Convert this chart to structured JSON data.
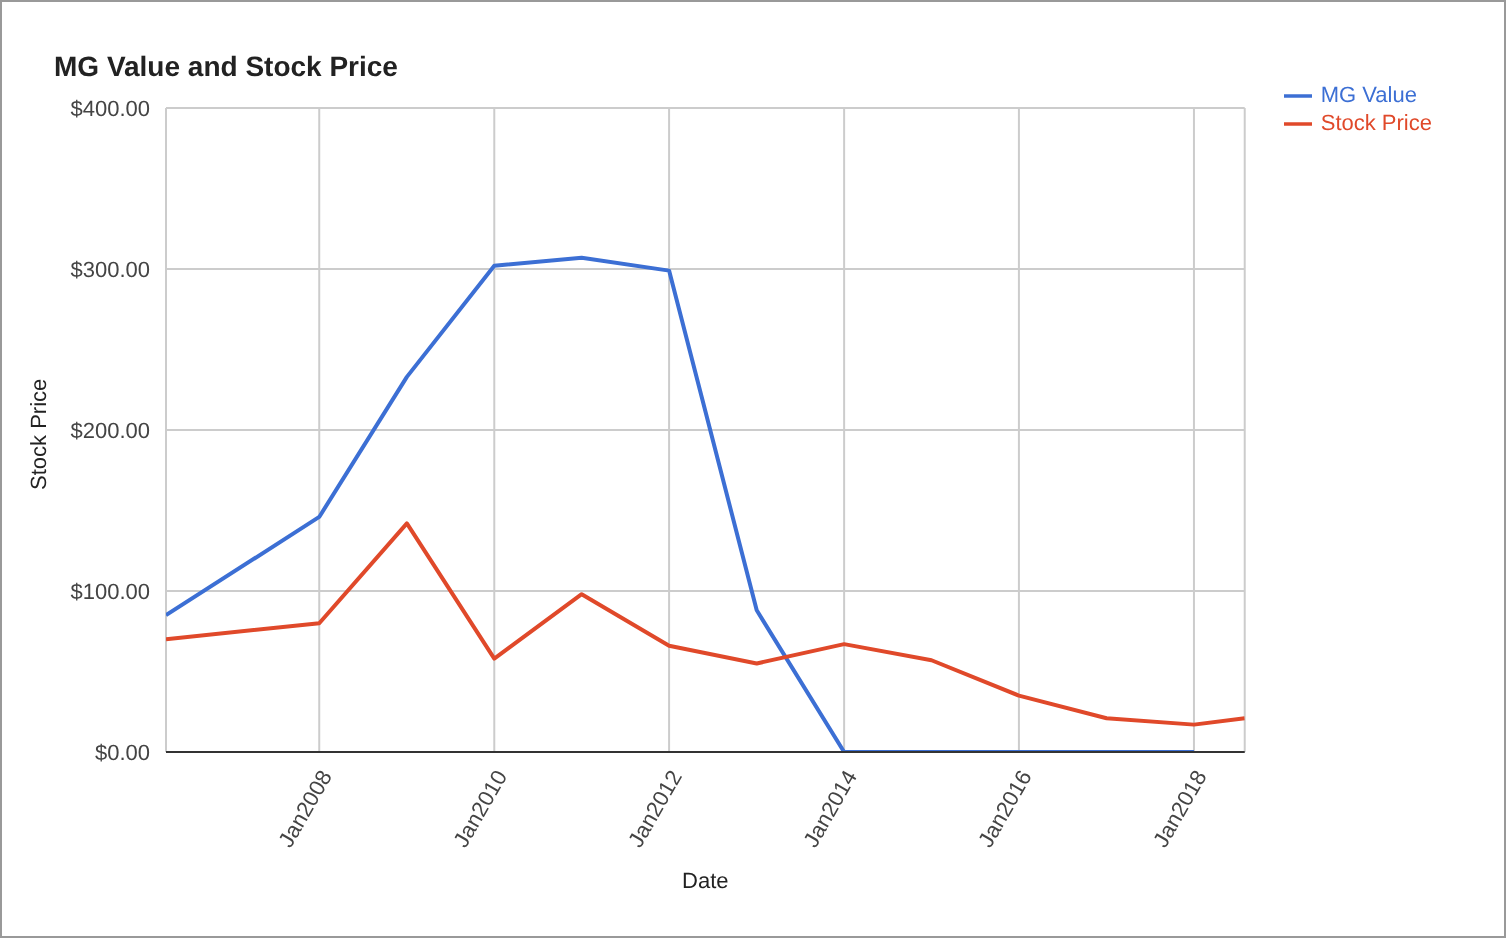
{
  "chart_data": {
    "type": "line",
    "title": "MG Value and Stock Price",
    "xlabel": "Date",
    "ylabel": "Stock Price",
    "x": [
      "2006-04",
      "2008-01",
      "2009-01",
      "2010-01",
      "2011-01",
      "2012-01",
      "2013-01",
      "2014-01",
      "2015-01",
      "2016-01",
      "2017-01",
      "2018-01",
      "2018-08"
    ],
    "series": [
      {
        "name": "MG Value",
        "color": "#3c6fd4",
        "values": [
          85,
          146,
          233,
          302,
          307,
          299,
          88,
          0,
          0,
          0,
          0,
          0,
          null
        ]
      },
      {
        "name": "Stock Price",
        "color": "#e0492a",
        "values": [
          70,
          80,
          142,
          58,
          98,
          66,
          55,
          67,
          57,
          35,
          21,
          17,
          21
        ]
      }
    ],
    "xlim": [
      "2006-04",
      "2018-08"
    ],
    "xticks": [
      {
        "value": "2008-01",
        "label": "Jan2008"
      },
      {
        "value": "2010-01",
        "label": "Jan2010"
      },
      {
        "value": "2012-01",
        "label": "Jan2012"
      },
      {
        "value": "2014-01",
        "label": "Jan2014"
      },
      {
        "value": "2016-01",
        "label": "Jan2016"
      },
      {
        "value": "2018-01",
        "label": "Jan2018"
      }
    ],
    "ylim": [
      0,
      400
    ],
    "yticks": [
      {
        "value": 0,
        "label": "$0.00"
      },
      {
        "value": 100,
        "label": "$100.00"
      },
      {
        "value": 200,
        "label": "$200.00"
      },
      {
        "value": 300,
        "label": "$300.00"
      },
      {
        "value": 400,
        "label": "$400.00"
      }
    ],
    "grid": true,
    "legend": "right",
    "marker": "none",
    "line_style": "solid"
  }
}
